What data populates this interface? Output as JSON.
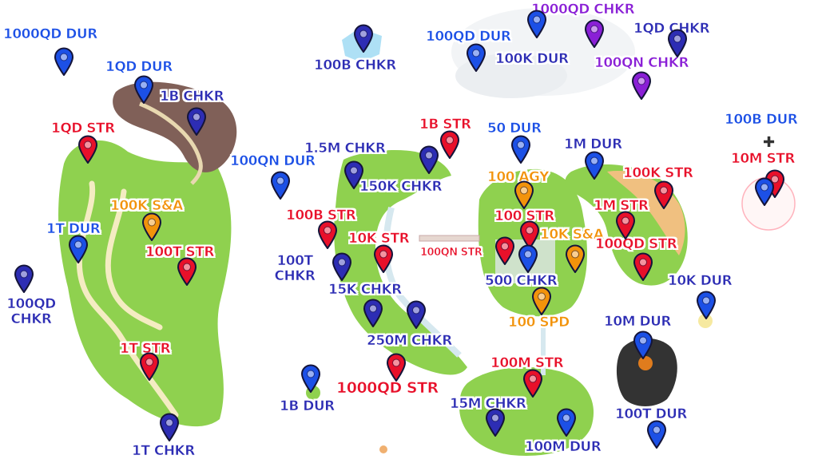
{
  "colors": {
    "dur": "#1c50e6",
    "chkr": "#2d2db4",
    "chkr_purple": "#8a1fd6",
    "str": "#e8102a",
    "agy_sa_spd": "#f2930b",
    "grass": "#8fd14f",
    "rock": "#806058",
    "sand": "#f0c080",
    "volcano": "#333333"
  },
  "labels": {
    "l01": "1000QD DUR",
    "l02": "1QD DUR",
    "l03": "1B CHKR",
    "l04": "1QD STR",
    "l05": "100K S&A",
    "l06": "1T DUR",
    "l07": "100T STR",
    "l08": "100QD",
    "l08b": "CHKR",
    "l09": "1T STR",
    "l10": "1T CHKR",
    "l11": "100B CHKR",
    "l12": "100QD DUR",
    "l13": "1000QD CHKR",
    "l14": "1QD CHKR",
    "l15": "100K DUR",
    "l16": "100QN CHKR",
    "l17": "1B STR",
    "l18": "50 DUR",
    "l19": "1.5M CHKR",
    "l20": "100QN DUR",
    "l21": "150K CHKR",
    "l22": "100 AGY",
    "l23": "1M DUR",
    "l24": "100K STR",
    "l25": "100B DUR",
    "l26": "10M STR",
    "l27": "100B STR",
    "l28": "100 STR",
    "l29": "1M STR",
    "l30": "10K STR",
    "l31": "100QN STR",
    "l32": "10K S&A",
    "l33": "100QD STR",
    "l34": "100T",
    "l34b": "CHKR",
    "l35": "500 CHKR",
    "l36": "15K CHKR",
    "l37": "10K DUR",
    "l38": "100 SPD",
    "l39": "10M DUR",
    "l40": "250M CHKR",
    "l41": "100M STR",
    "l42": "1000QD STR",
    "l43": "1B DUR",
    "l44": "15M CHKR",
    "l45": "100T DUR",
    "l46": "100M DUR"
  },
  "pins": [
    {
      "name": "pin-1000qd-dur",
      "color": "dur"
    },
    {
      "name": "pin-1qd-dur",
      "color": "dur"
    },
    {
      "name": "pin-1b-chkr",
      "color": "chkr"
    },
    {
      "name": "pin-1qd-str",
      "color": "str"
    },
    {
      "name": "pin-100k-sa",
      "color": "orange"
    },
    {
      "name": "pin-1t-dur",
      "color": "dur"
    },
    {
      "name": "pin-100t-str",
      "color": "str"
    },
    {
      "name": "pin-100qd-chkr",
      "color": "chkr"
    },
    {
      "name": "pin-1t-str",
      "color": "str"
    },
    {
      "name": "pin-1t-chkr",
      "color": "chkr"
    },
    {
      "name": "pin-100b-chkr",
      "color": "chkr"
    },
    {
      "name": "pin-100qd-dur",
      "color": "dur"
    },
    {
      "name": "pin-1000qd-chkr-a",
      "color": "dur"
    },
    {
      "name": "pin-1000qd-chkr-b",
      "color": "chkr2"
    },
    {
      "name": "pin-1qd-chkr",
      "color": "chkr"
    },
    {
      "name": "pin-100qn-chkr",
      "color": "chkr2"
    },
    {
      "name": "pin-1b-str",
      "color": "str"
    },
    {
      "name": "pin-50-dur",
      "color": "dur"
    },
    {
      "name": "pin-1-5m-chkr",
      "color": "chkr"
    },
    {
      "name": "pin-100qn-dur",
      "color": "dur"
    },
    {
      "name": "pin-150k-chkr",
      "color": "chkr"
    },
    {
      "name": "pin-100-agy",
      "color": "orange"
    },
    {
      "name": "pin-1m-dur",
      "color": "dur"
    },
    {
      "name": "pin-100k-str",
      "color": "str"
    },
    {
      "name": "pin-10m-str",
      "color": "str"
    },
    {
      "name": "pin-100b-dur",
      "color": "dur"
    },
    {
      "name": "pin-100b-str",
      "color": "str"
    },
    {
      "name": "pin-100-str",
      "color": "str"
    },
    {
      "name": "pin-1m-str",
      "color": "str"
    },
    {
      "name": "pin-10k-str",
      "color": "str"
    },
    {
      "name": "pin-100qn-str",
      "color": "str"
    },
    {
      "name": "pin-10k-sa",
      "color": "orange"
    },
    {
      "name": "pin-100qd-str",
      "color": "str"
    },
    {
      "name": "pin-100t-chkr",
      "color": "chkr"
    },
    {
      "name": "pin-500-chkr",
      "color": "dur"
    },
    {
      "name": "pin-15k-chkr",
      "color": "chkr"
    },
    {
      "name": "pin-10k-dur",
      "color": "dur"
    },
    {
      "name": "pin-100-spd",
      "color": "orange"
    },
    {
      "name": "pin-10m-dur",
      "color": "dur"
    },
    {
      "name": "pin-250m-chkr",
      "color": "chkr"
    },
    {
      "name": "pin-1000qd-str",
      "color": "str"
    },
    {
      "name": "pin-100m-str",
      "color": "str"
    },
    {
      "name": "pin-1b-dur",
      "color": "dur"
    },
    {
      "name": "pin-15m-chkr",
      "color": "chkr"
    },
    {
      "name": "pin-100m-dur",
      "color": "dur"
    },
    {
      "name": "pin-100t-dur",
      "color": "dur"
    }
  ]
}
